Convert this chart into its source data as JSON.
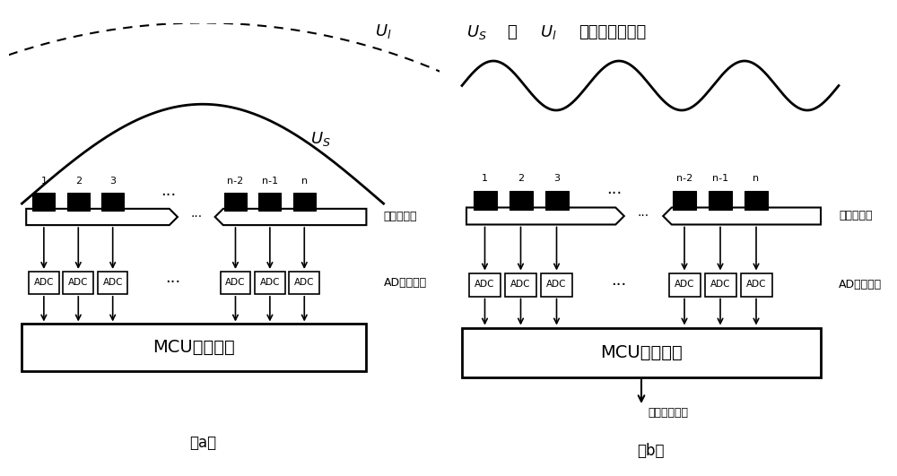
{
  "bg_color": "#ffffff",
  "fig_width": 10.0,
  "fig_height": 5.31,
  "panel_a": {
    "label": "（a）",
    "ul_label": "$U_l$",
    "us_label": "$U_S$",
    "array_label": "阵列探测器",
    "adc_label": "AD采集模块",
    "mcu_label": "MCU控制系统",
    "pixel_numbers": [
      "1",
      "2",
      "3",
      "n-2",
      "n-1",
      "n"
    ]
  },
  "panel_b": {
    "label": "（b）",
    "top_label_1": "$U_S$",
    "top_label_2": "和",
    "top_label_3": "$U_l$",
    "top_label_4": "形成的干涉光场",
    "array_label": "阵列探测器",
    "adc_label": "AD采集模块",
    "mcu_label": "MCU控制系统",
    "output_label": "中频信号输出",
    "pixel_numbers": [
      "1",
      "2",
      "3",
      "n-2",
      "n-1",
      "n"
    ]
  }
}
